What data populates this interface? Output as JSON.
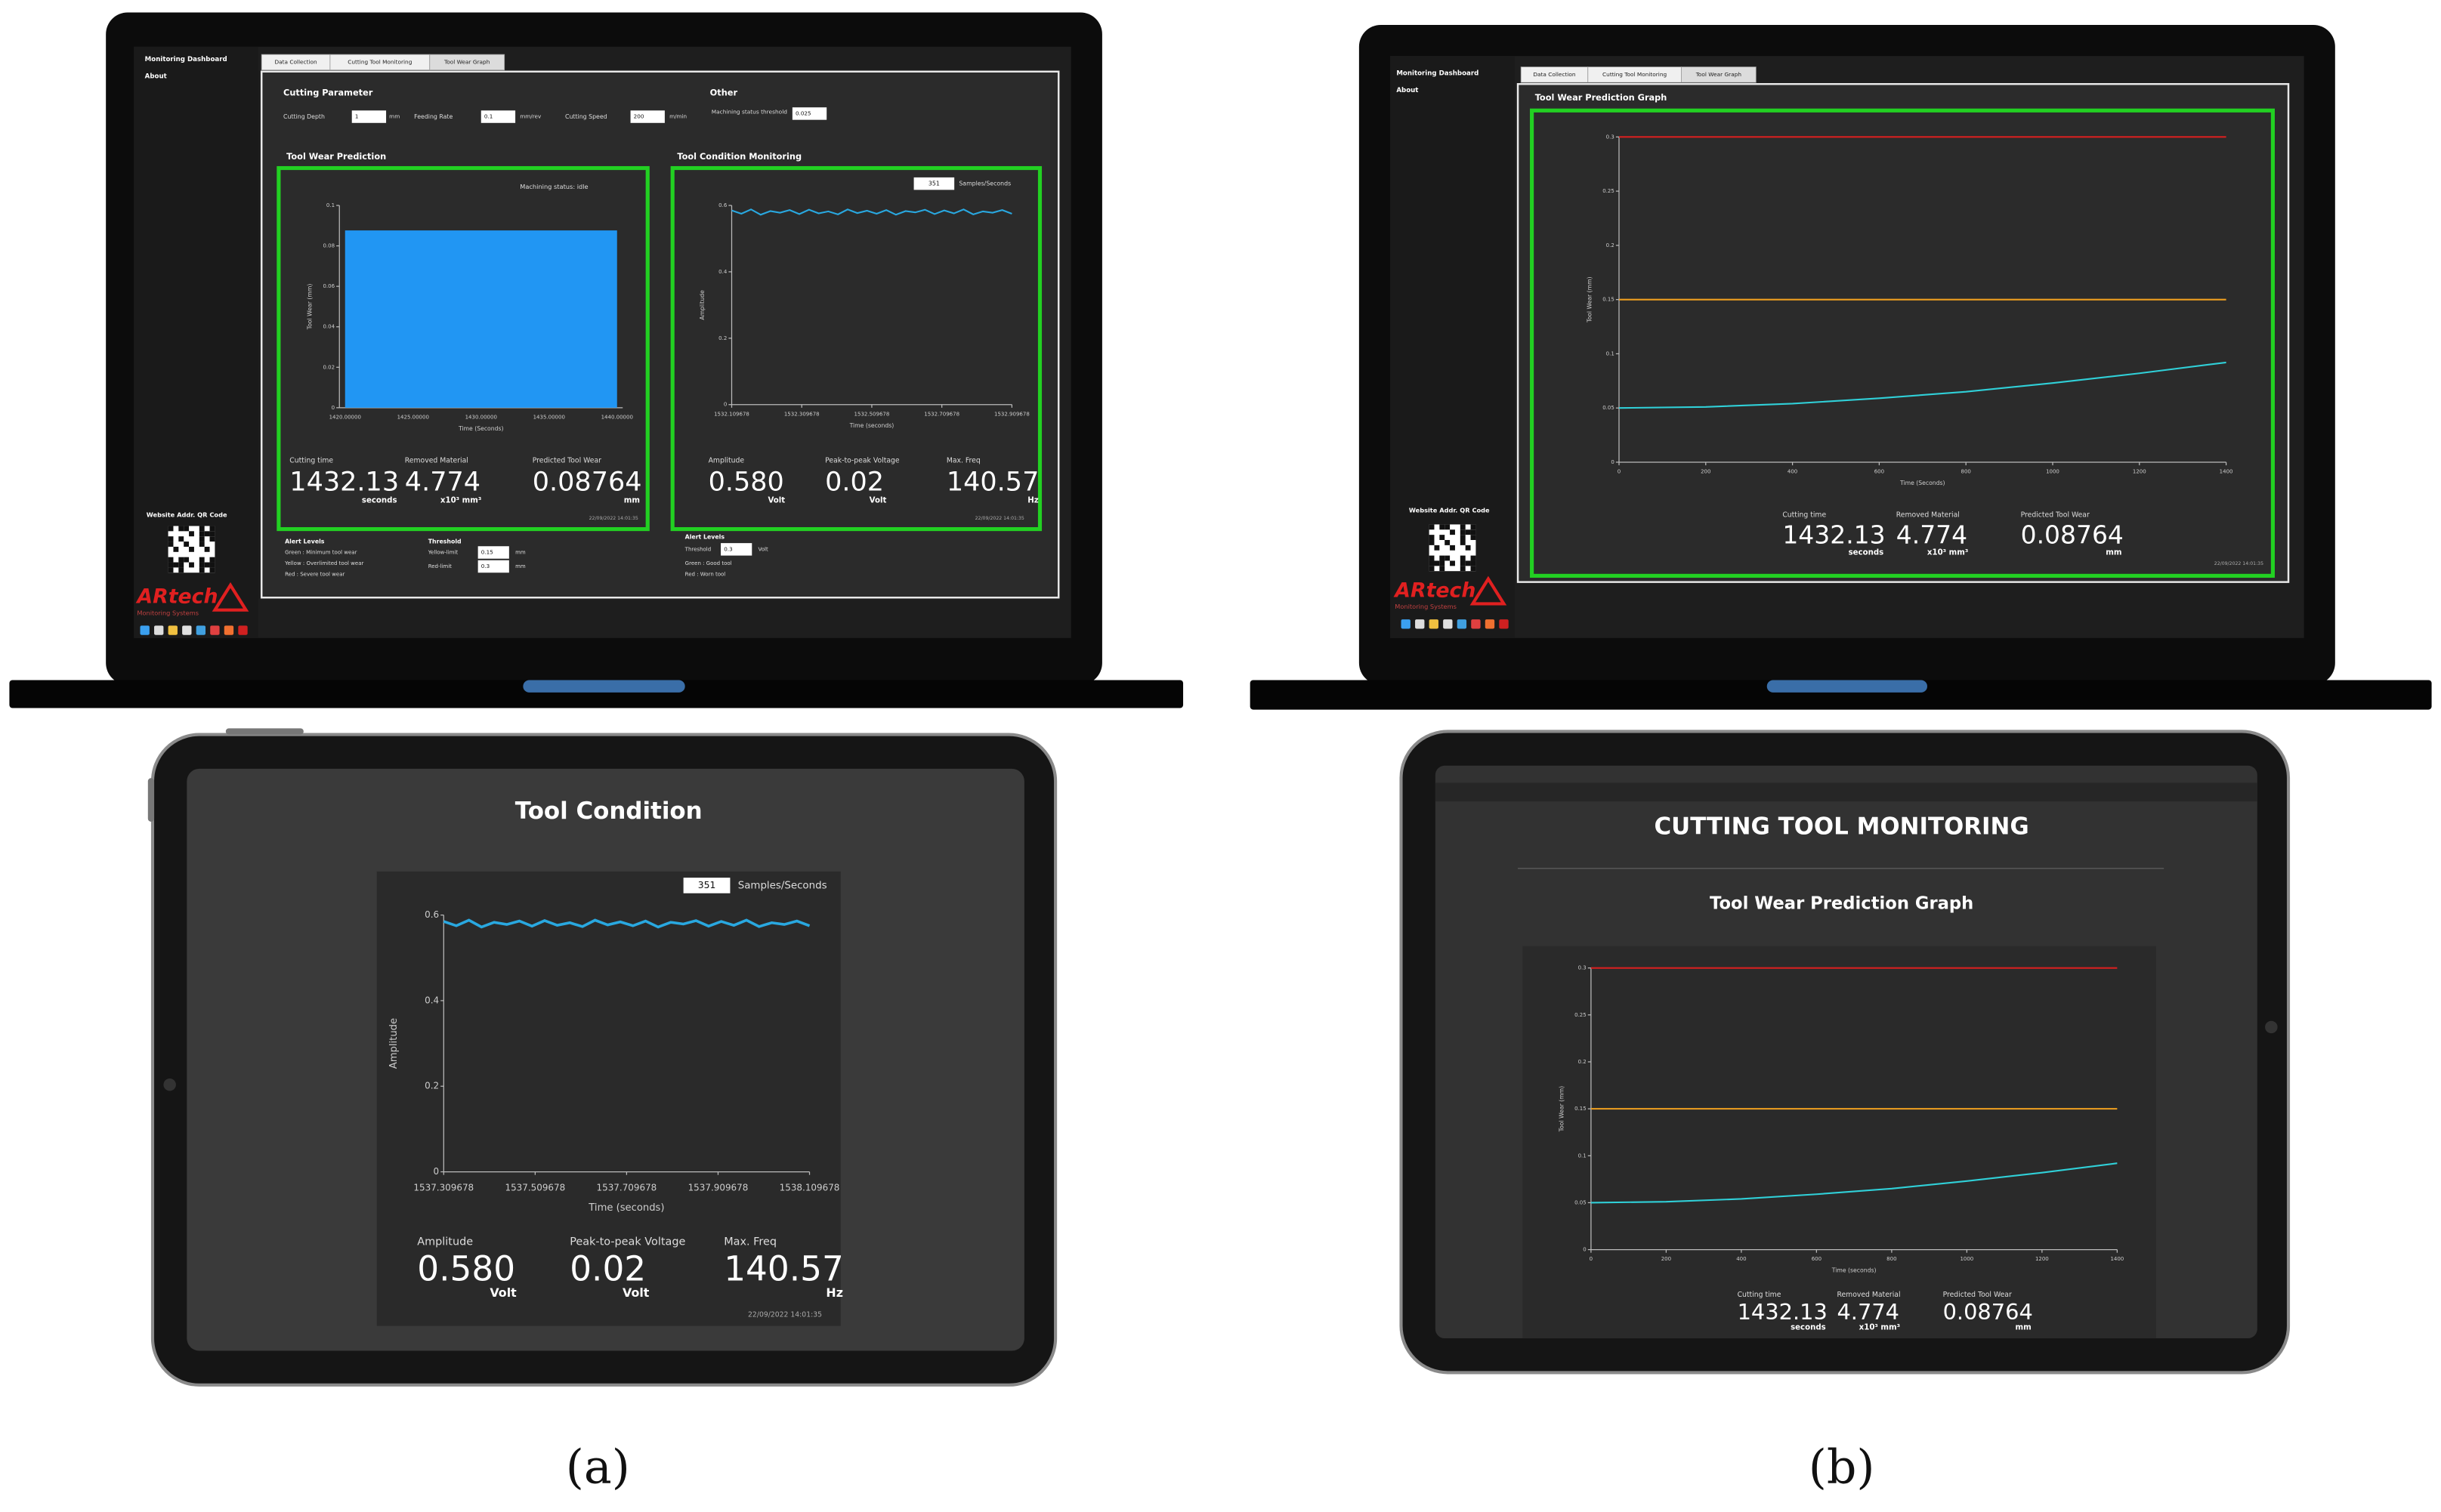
{
  "captions": [
    "(a)",
    "(b)"
  ],
  "laptop_a": {
    "sidebar": [
      "Monitoring Dashboard",
      "About"
    ],
    "tabs": [
      "Data Collection",
      "Cutting Tool Monitoring",
      "Tool Wear Graph"
    ],
    "qr_label": "Website Addr. QR Code",
    "logo": "ARtech",
    "logo_sub": "Monitoring Systems",
    "cutting_parameter": {
      "title": "Cutting Parameter",
      "fields": [
        {
          "label": "Cutting Depth",
          "value": "1",
          "unit": "mm"
        },
        {
          "label": "Feeding Rate",
          "value": "0.1",
          "unit": "mm/rev"
        },
        {
          "label": "Cutting Speed",
          "value": "200",
          "unit": "m/min"
        }
      ]
    },
    "other": {
      "title": "Other",
      "label": "Machining status threshold",
      "value": "0.025"
    },
    "wear_panel": {
      "title": "Tool Wear Prediction",
      "status": "Machining status: idle",
      "chart": {
        "type": "bar",
        "xlabel": "Time (Seconds)",
        "ylabel": "Tool Wear (mm)",
        "ylim": [
          0,
          0.1
        ],
        "yticks": [
          0,
          0.02,
          0.04,
          0.06,
          0.08,
          0.1
        ],
        "value": 0.08764,
        "color": "#2196f3",
        "xtick_labels": [
          "1420.00000",
          "1425.00000",
          "1430.00000",
          "1435.00000",
          "1440.00000"
        ]
      },
      "metrics": [
        {
          "label": "Cutting time",
          "value": "1432.13",
          "unit": "seconds"
        },
        {
          "label": "Removed Material",
          "value": "4.774",
          "unit": "x10³ mm³"
        },
        {
          "label": "Predicted Tool Wear",
          "value": "0.08764",
          "unit": "mm"
        }
      ],
      "date": "22/09/2022 14:01:35"
    },
    "condition_panel": {
      "title": "Tool Condition Monitoring",
      "samples": "351",
      "samples_label": "Samples/Seconds",
      "chart": {
        "type": "line",
        "xlabel": "Time (seconds)",
        "ylabel": "Amplitude",
        "xlim": [
          1532.109678,
          1532.909678
        ],
        "ylim": [
          0,
          0.6
        ],
        "xticks": [
          1532.109678,
          1532.309678,
          1532.509678,
          1532.709678,
          1532.909678
        ],
        "yticks": [
          0,
          0.2,
          0.4,
          0.6
        ],
        "series": [
          {
            "color": "#29a8e0",
            "values": [
              0.585,
              0.575,
              0.588,
              0.572,
              0.583,
              0.578,
              0.586,
              0.574,
              0.587,
              0.576,
              0.582,
              0.573,
              0.588,
              0.577,
              0.584,
              0.575,
              0.586,
              0.572,
              0.583,
              0.579,
              0.587,
              0.574,
              0.585,
              0.576,
              0.588,
              0.573,
              0.582,
              0.578,
              0.586,
              0.575
            ]
          }
        ]
      },
      "metrics": [
        {
          "label": "Amplitude",
          "value": "0.580",
          "unit": "Volt"
        },
        {
          "label": "Peak-to-peak Voltage",
          "value": "0.02",
          "unit": "Volt"
        },
        {
          "label": "Max. Freq",
          "value": "140.57",
          "unit": "Hz"
        }
      ],
      "date": "22/09/2022 14:01:35"
    },
    "alerts_wear": {
      "title": "Alert Levels",
      "items": [
        "Green : Minimum tool wear",
        "Yellow : Overlimited tool wear",
        "Red : Severe tool wear"
      ],
      "threshold_title": "Threshold",
      "thresholds": [
        {
          "label": "Yellow-limit",
          "value": "0.15",
          "unit": "mm"
        },
        {
          "label": "Red-limit",
          "value": "0.3",
          "unit": "mm"
        }
      ]
    },
    "alerts_condition": {
      "title": "Alert Levels",
      "threshold_label": "Threshold",
      "threshold_value": "0.3",
      "threshold_unit": "Volt",
      "items": [
        "Green : Good tool",
        "Red : Worn tool"
      ]
    }
  },
  "laptop_b": {
    "sidebar": [
      "Monitoring Dashboard",
      "About"
    ],
    "tabs": [
      "Data Collection",
      "Cutting Tool Monitoring",
      "Tool Wear Graph"
    ],
    "qr_label": "Website Addr. QR Code",
    "logo": "ARtech",
    "logo_sub": "Monitoring Systems",
    "title": "Tool Wear Prediction Graph",
    "chart": {
      "type": "line",
      "xlabel": "Time (Seconds)",
      "ylabel": "Tool Wear (mm)",
      "xlim": [
        0,
        1400
      ],
      "ylim": [
        0,
        0.3
      ],
      "xticks": [
        0,
        200,
        400,
        600,
        800,
        1000,
        1200,
        1400
      ],
      "yticks": [
        0,
        0.05,
        0.1,
        0.15,
        0.2,
        0.25,
        0.3
      ],
      "series": [
        {
          "color": "#d62020",
          "x": [
            0,
            1400
          ],
          "values": [
            0.3,
            0.3
          ]
        },
        {
          "color": "#f0a020",
          "x": [
            0,
            1400
          ],
          "values": [
            0.15,
            0.15
          ]
        },
        {
          "color": "#30d0d8",
          "x": [
            0,
            200,
            400,
            600,
            800,
            1000,
            1200,
            1400
          ],
          "values": [
            0.05,
            0.051,
            0.054,
            0.059,
            0.065,
            0.073,
            0.082,
            0.092
          ]
        }
      ]
    },
    "metrics": [
      {
        "label": "Cutting time",
        "value": "1432.13",
        "unit": "seconds"
      },
      {
        "label": "Removed Material",
        "value": "4.774",
        "unit": "x10³ mm³"
      },
      {
        "label": "Predicted Tool Wear",
        "value": "0.08764",
        "unit": "mm"
      }
    ],
    "date": "22/09/2022 14:01:35"
  },
  "tablet_a": {
    "title": "Tool Condition",
    "samples": "351",
    "samples_label": "Samples/Seconds",
    "chart": {
      "type": "line",
      "xlabel": "Time (seconds)",
      "ylabel": "Amplitude",
      "xlim": [
        1537.309678,
        1538.109678
      ],
      "ylim": [
        0,
        0.6
      ],
      "xticks": [
        1537.309678,
        1537.509678,
        1537.709678,
        1537.909678,
        1538.109678
      ],
      "yticks": [
        0,
        0.2,
        0.4,
        0.6
      ],
      "series": [
        {
          "color": "#29a8e0",
          "values": [
            0.585,
            0.575,
            0.588,
            0.572,
            0.583,
            0.578,
            0.586,
            0.574,
            0.587,
            0.576,
            0.582,
            0.573,
            0.588,
            0.577,
            0.584,
            0.575,
            0.586,
            0.572,
            0.583,
            0.579,
            0.587,
            0.574,
            0.585,
            0.576,
            0.588,
            0.573,
            0.582,
            0.578,
            0.586,
            0.575
          ]
        }
      ]
    },
    "metrics": [
      {
        "label": "Amplitude",
        "value": "0.580",
        "unit": "Volt"
      },
      {
        "label": "Peak-to-peak Voltage",
        "value": "0.02",
        "unit": "Volt"
      },
      {
        "label": "Max. Freq",
        "value": "140.57",
        "unit": "Hz"
      }
    ],
    "date": "22/09/2022 14:01:35"
  },
  "tablet_b": {
    "title": "CUTTING TOOL MONITORING",
    "subtitle": "Tool Wear Prediction Graph",
    "chart": {
      "type": "line",
      "xlabel": "Time (seconds)",
      "ylabel": "Tool Wear (mm)",
      "xlim": [
        0,
        1400
      ],
      "ylim": [
        0,
        0.3
      ],
      "xticks": [
        0,
        200,
        400,
        600,
        800,
        1000,
        1200,
        1400
      ],
      "yticks": [
        0,
        0.05,
        0.1,
        0.15,
        0.2,
        0.25,
        0.3
      ],
      "series": [
        {
          "color": "#d62020",
          "x": [
            0,
            1400
          ],
          "values": [
            0.3,
            0.3
          ]
        },
        {
          "color": "#f0a020",
          "x": [
            0,
            1400
          ],
          "values": [
            0.15,
            0.15
          ]
        },
        {
          "color": "#30d0d8",
          "x": [
            0,
            200,
            400,
            600,
            800,
            1000,
            1200,
            1400
          ],
          "values": [
            0.05,
            0.051,
            0.054,
            0.059,
            0.065,
            0.073,
            0.082,
            0.092
          ]
        }
      ]
    },
    "metrics": [
      {
        "label": "Cutting time",
        "value": "1432.13",
        "unit": "seconds"
      },
      {
        "label": "Removed Material",
        "value": "4.774",
        "unit": "x10³ mm³"
      },
      {
        "label": "Predicted Tool Wear",
        "value": "0.08764",
        "unit": "mm"
      }
    ]
  }
}
